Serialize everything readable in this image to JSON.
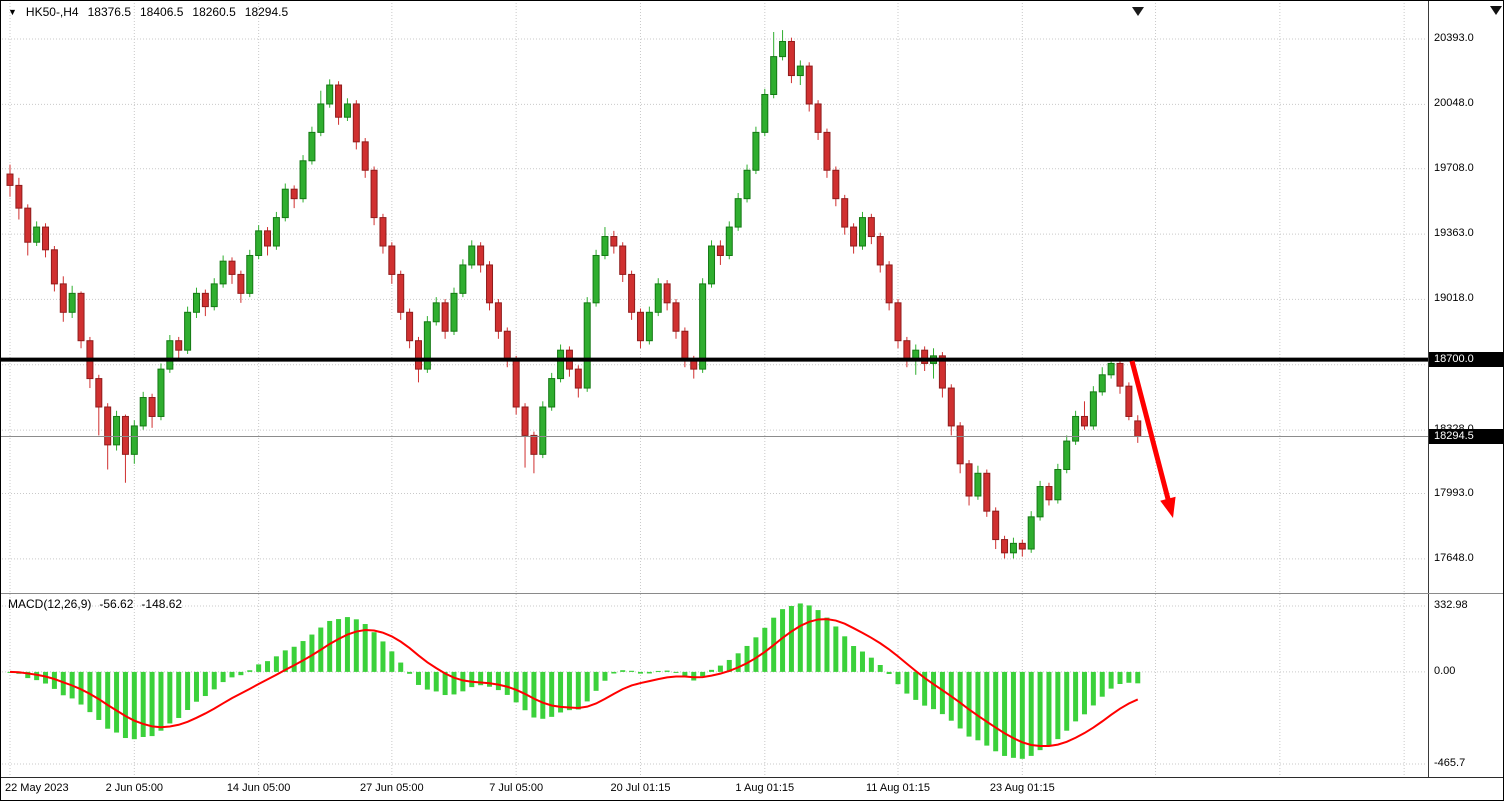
{
  "header": {
    "expander_icon": "▼",
    "symbol_period": "HK50-,H4",
    "ohlc": {
      "open": "18376.5",
      "high": "18406.5",
      "low": "18260.5",
      "close": "18294.5"
    }
  },
  "indicator": {
    "label": "MACD(12,26,9)",
    "main_value": "-56.62",
    "signal_value": "-148.62"
  },
  "colors": {
    "up": "#2fae2f",
    "up_border": "#147914",
    "down": "#d03030",
    "down_border": "#8f1c1c",
    "macd_hist": "#3bd13b",
    "macd_signal": "#ff0000",
    "grid": "#c9c9c9",
    "level_line": "#000000",
    "last_price_line": "#8c8c8c",
    "tag_bg": "#000000",
    "tag_fg": "#ffffff",
    "arrow": "#ff0000",
    "shift_marker": "#1a1a1a"
  },
  "chart_data": {
    "type": "candlestick_with_macd",
    "title": "HK50-,H4",
    "last_price": 18294.5,
    "level_line": 18700.0,
    "ylim": [
      17478,
      20551
    ],
    "y_axis": {
      "grid_prices": [
        20393,
        20048,
        19708,
        19363,
        19018,
        18673,
        18328,
        17993,
        17648
      ],
      "labels": [
        {
          "text": "20393.0",
          "price": 20393
        },
        {
          "text": "20048.0",
          "price": 20048
        },
        {
          "text": "19708.0",
          "price": 19708
        },
        {
          "text": "19363.0",
          "price": 19363
        },
        {
          "text": "19018.0",
          "price": 19018
        },
        {
          "text": "18328.0",
          "price": 18328
        },
        {
          "text": "17993.0",
          "price": 17993
        },
        {
          "text": "17648.0",
          "price": 17648
        }
      ],
      "tags": [
        {
          "text": "18700.0",
          "price": 18700.0
        },
        {
          "text": "18294.5",
          "price": 18294.5
        }
      ]
    },
    "x_axis": {
      "labels": [
        {
          "text": "22 May 2023",
          "bar": 0
        },
        {
          "text": "2 Jun 05:00",
          "bar": 14
        },
        {
          "text": "14 Jun 05:00",
          "bar": 28
        },
        {
          "text": "27 Jun 05:00",
          "bar": 43
        },
        {
          "text": "7 Jul 05:00",
          "bar": 57
        },
        {
          "text": "20 Jul 01:15",
          "bar": 71
        },
        {
          "text": "1 Aug 01:15",
          "bar": 85
        },
        {
          "text": "11 Aug 01:15",
          "bar": 100
        },
        {
          "text": "23 Aug 01:15",
          "bar": 114
        }
      ],
      "future_grid_bars": [
        129,
        143,
        157
      ]
    },
    "candles": [
      [
        19680,
        19730,
        19560,
        19620
      ],
      [
        19620,
        19660,
        19440,
        19500
      ],
      [
        19500,
        19520,
        19250,
        19320
      ],
      [
        19320,
        19430,
        19300,
        19400
      ],
      [
        19400,
        19420,
        19240,
        19280
      ],
      [
        19280,
        19300,
        19060,
        19100
      ],
      [
        19100,
        19140,
        18900,
        18950
      ],
      [
        18950,
        19090,
        18920,
        19050
      ],
      [
        19050,
        19060,
        18760,
        18800
      ],
      [
        18800,
        18820,
        18550,
        18600
      ],
      [
        18600,
        18620,
        18300,
        18450
      ],
      [
        18450,
        18470,
        18120,
        18250
      ],
      [
        18250,
        18430,
        18220,
        18400
      ],
      [
        18400,
        18410,
        18050,
        18200
      ],
      [
        18200,
        18380,
        18150,
        18350
      ],
      [
        18350,
        18530,
        18330,
        18500
      ],
      [
        18500,
        18520,
        18340,
        18400
      ],
      [
        18400,
        18680,
        18380,
        18650
      ],
      [
        18650,
        18830,
        18630,
        18800
      ],
      [
        18800,
        18820,
        18700,
        18750
      ],
      [
        18750,
        18980,
        18730,
        18950
      ],
      [
        18950,
        19080,
        18920,
        19050
      ],
      [
        19050,
        19070,
        18930,
        18980
      ],
      [
        18980,
        19130,
        18960,
        19100
      ],
      [
        19100,
        19250,
        19080,
        19220
      ],
      [
        19220,
        19240,
        19100,
        19150
      ],
      [
        19150,
        19170,
        19000,
        19050
      ],
      [
        19050,
        19280,
        19030,
        19250
      ],
      [
        19250,
        19410,
        19230,
        19380
      ],
      [
        19380,
        19400,
        19250,
        19300
      ],
      [
        19300,
        19480,
        19280,
        19450
      ],
      [
        19450,
        19630,
        19430,
        19600
      ],
      [
        19600,
        19620,
        19500,
        19550
      ],
      [
        19550,
        19780,
        19530,
        19750
      ],
      [
        19750,
        19930,
        19730,
        19900
      ],
      [
        19900,
        20120,
        19880,
        20050
      ],
      [
        20050,
        20180,
        20030,
        20150
      ],
      [
        20150,
        20170,
        19940,
        19980
      ],
      [
        19980,
        20080,
        19960,
        20050
      ],
      [
        20050,
        20070,
        19810,
        19850
      ],
      [
        19850,
        19870,
        19660,
        19700
      ],
      [
        19700,
        19720,
        19410,
        19450
      ],
      [
        19450,
        19470,
        19260,
        19300
      ],
      [
        19300,
        19320,
        19100,
        19150
      ],
      [
        19150,
        19170,
        18910,
        18950
      ],
      [
        18950,
        18970,
        18760,
        18800
      ],
      [
        18800,
        18820,
        18580,
        18650
      ],
      [
        18650,
        18930,
        18630,
        18900
      ],
      [
        18900,
        19030,
        18880,
        19000
      ],
      [
        19000,
        19020,
        18810,
        18850
      ],
      [
        18850,
        19080,
        18830,
        19050
      ],
      [
        19050,
        19230,
        19030,
        19200
      ],
      [
        19200,
        19330,
        19180,
        19300
      ],
      [
        19300,
        19320,
        19160,
        19200
      ],
      [
        19200,
        19220,
        18960,
        19000
      ],
      [
        19000,
        19020,
        18810,
        18850
      ],
      [
        18850,
        18870,
        18660,
        18700
      ],
      [
        18700,
        18720,
        18410,
        18450
      ],
      [
        18450,
        18470,
        18130,
        18300
      ],
      [
        18300,
        18320,
        18100,
        18200
      ],
      [
        18200,
        18480,
        18180,
        18450
      ],
      [
        18450,
        18630,
        18430,
        18600
      ],
      [
        18600,
        18780,
        18580,
        18750
      ],
      [
        18750,
        18770,
        18610,
        18650
      ],
      [
        18650,
        18670,
        18500,
        18550
      ],
      [
        18550,
        19030,
        18530,
        19000
      ],
      [
        19000,
        19280,
        18980,
        19250
      ],
      [
        19250,
        19400,
        19230,
        19350
      ],
      [
        19350,
        19380,
        19260,
        19300
      ],
      [
        19300,
        19320,
        19110,
        19150
      ],
      [
        19150,
        19170,
        18910,
        18950
      ],
      [
        18950,
        18970,
        18760,
        18800
      ],
      [
        18800,
        18980,
        18780,
        18950
      ],
      [
        18950,
        19130,
        18930,
        19100
      ],
      [
        19100,
        19120,
        18960,
        19000
      ],
      [
        19000,
        19020,
        18810,
        18850
      ],
      [
        18850,
        18870,
        18660,
        18700
      ],
      [
        18700,
        18720,
        18600,
        18650
      ],
      [
        18650,
        19130,
        18630,
        19100
      ],
      [
        19100,
        19330,
        19080,
        19300
      ],
      [
        19300,
        19330,
        19200,
        19250
      ],
      [
        19250,
        19430,
        19230,
        19400
      ],
      [
        19400,
        19580,
        19380,
        19550
      ],
      [
        19550,
        19730,
        19530,
        19700
      ],
      [
        19700,
        19930,
        19680,
        19900
      ],
      [
        19900,
        20130,
        19880,
        20100
      ],
      [
        20100,
        20430,
        20080,
        20300
      ],
      [
        20300,
        20440,
        20280,
        20380
      ],
      [
        20380,
        20400,
        20160,
        20200
      ],
      [
        20200,
        20280,
        20150,
        20250
      ],
      [
        20250,
        20270,
        20010,
        20050
      ],
      [
        20050,
        20070,
        19860,
        19900
      ],
      [
        19900,
        19920,
        19660,
        19700
      ],
      [
        19700,
        19720,
        19510,
        19550
      ],
      [
        19550,
        19570,
        19360,
        19400
      ],
      [
        19400,
        19420,
        19260,
        19300
      ],
      [
        19300,
        19480,
        19280,
        19450
      ],
      [
        19450,
        19470,
        19310,
        19350
      ],
      [
        19350,
        19370,
        19160,
        19200
      ],
      [
        19200,
        19220,
        18960,
        19000
      ],
      [
        19000,
        19020,
        18760,
        18800
      ],
      [
        18800,
        18820,
        18660,
        18700
      ],
      [
        18700,
        18780,
        18620,
        18750
      ],
      [
        18750,
        18770,
        18640,
        18680
      ],
      [
        18680,
        18760,
        18600,
        18720
      ],
      [
        18720,
        18740,
        18500,
        18550
      ],
      [
        18550,
        18570,
        18300,
        18350
      ],
      [
        18350,
        18370,
        18100,
        18150
      ],
      [
        18150,
        18170,
        17930,
        17980
      ],
      [
        17980,
        18140,
        17960,
        18100
      ],
      [
        18100,
        18120,
        17870,
        17900
      ],
      [
        17900,
        17920,
        17700,
        17750
      ],
      [
        17750,
        17770,
        17650,
        17680
      ],
      [
        17680,
        17760,
        17650,
        17730
      ],
      [
        17730,
        17750,
        17660,
        17700
      ],
      [
        17700,
        17900,
        17680,
        17870
      ],
      [
        17870,
        18060,
        17850,
        18030
      ],
      [
        18030,
        18050,
        17930,
        17960
      ],
      [
        17960,
        18150,
        17940,
        18120
      ],
      [
        18120,
        18300,
        18100,
        18270
      ],
      [
        18270,
        18430,
        18250,
        18400
      ],
      [
        18400,
        18480,
        18330,
        18350
      ],
      [
        18350,
        18560,
        18330,
        18530
      ],
      [
        18530,
        18660,
        18510,
        18620
      ],
      [
        18620,
        18700,
        18600,
        18680
      ],
      [
        18680,
        18695,
        18520,
        18560
      ],
      [
        18560,
        18580,
        18380,
        18400
      ],
      [
        18376.5,
        18406.5,
        18260.5,
        18294.5
      ]
    ],
    "macd": {
      "label": "MACD(12,26,9)",
      "params": [
        12,
        26,
        9
      ],
      "main_value": -56.62,
      "signal_value": -148.62,
      "ylim": [
        -465.7,
        332.98
      ],
      "axis_labels": [
        {
          "text": "332.98",
          "value": 332.98
        },
        {
          "text": "0.00",
          "value": 0
        },
        {
          "text": "-465.7",
          "value": -465.7
        }
      ]
    }
  },
  "annotations": {
    "trend_arrow": {
      "direction": "down-right",
      "from_price": 18700,
      "to_price": 17900
    },
    "shift_marker_icon": "▼"
  }
}
